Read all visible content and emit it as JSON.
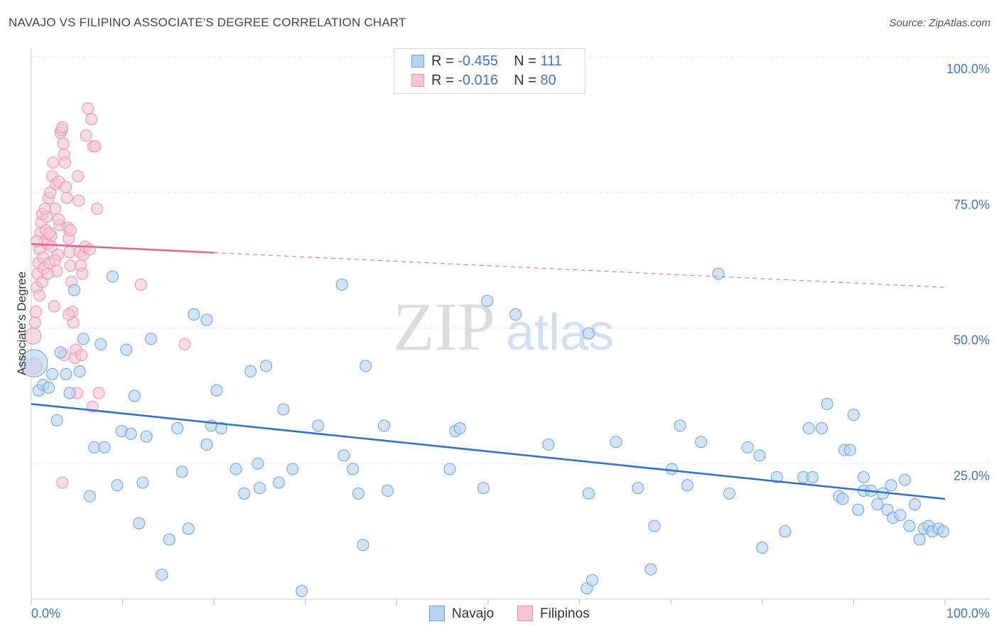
{
  "title": "NAVAJO VS FILIPINO ASSOCIATE'S DEGREE CORRELATION CHART",
  "source": "Source: ZipAtlas.com",
  "watermark": {
    "zip": "ZIP",
    "atlas": "atlas"
  },
  "legend": {
    "navajo": {
      "r_label": "R =",
      "r_value": "-0.455",
      "n_label": "N =",
      "n_value": "111"
    },
    "filipinos": {
      "r_label": "R =",
      "r_value": "-0.016",
      "n_label": "N =",
      "n_value": "80"
    }
  },
  "colors": {
    "navajo_fill": "#b7d2f3",
    "navajo_stroke": "#6b9fdf",
    "navajo_line": "#2a6fd6",
    "filipino_fill": "#f9c5d4",
    "filipino_stroke": "#ee8fae",
    "filipino_line": "#e8628a",
    "axis_text": "#3a74d0",
    "grid": "#e6e6e6"
  },
  "chart_data": {
    "type": "scatter",
    "title": "NAVAJO VS FILIPINO ASSOCIATE'S DEGREE CORRELATION CHART",
    "xlabel": "",
    "ylabel": "Associate's Degree",
    "xlim": [
      0,
      100
    ],
    "ylim": [
      0,
      100
    ],
    "x_tick_labels": [
      "0.0%",
      "100.0%"
    ],
    "y_tick_labels": [
      "25.0%",
      "50.0%",
      "75.0%",
      "100.0%"
    ],
    "y_ticks": [
      25,
      50,
      75,
      100
    ],
    "series": [
      {
        "name": "Navajo",
        "trend": {
          "x": [
            0,
            100
          ],
          "y": [
            36.0,
            18.5
          ],
          "dashed_from": null
        },
        "points": [
          [
            0.3,
            43.5,
            2.4
          ],
          [
            0.8,
            38.5,
            1
          ],
          [
            1.3,
            39.5,
            1
          ],
          [
            1.9,
            39.0,
            1
          ],
          [
            2.3,
            41.5,
            1
          ],
          [
            2.8,
            33.0,
            1
          ],
          [
            3.2,
            45.5,
            1
          ],
          [
            3.8,
            41.5,
            1
          ],
          [
            4.2,
            38.0,
            1
          ],
          [
            4.7,
            57.0,
            1
          ],
          [
            5.3,
            42.0,
            1
          ],
          [
            5.7,
            48.0,
            1
          ],
          [
            6.4,
            19.0,
            1
          ],
          [
            6.9,
            28.0,
            1
          ],
          [
            7.6,
            47.0,
            1
          ],
          [
            8.0,
            28.0,
            1
          ],
          [
            8.9,
            59.5,
            1
          ],
          [
            9.4,
            21.0,
            1
          ],
          [
            9.9,
            31.0,
            1
          ],
          [
            10.4,
            46.0,
            1
          ],
          [
            10.9,
            30.5,
            1
          ],
          [
            11.3,
            37.5,
            1
          ],
          [
            11.8,
            14.0,
            1
          ],
          [
            12.2,
            21.5,
            1
          ],
          [
            12.6,
            30.0,
            1
          ],
          [
            13.1,
            48.0,
            1
          ],
          [
            14.3,
            4.5,
            1
          ],
          [
            15.1,
            11.0,
            1
          ],
          [
            16.0,
            31.5,
            1
          ],
          [
            16.5,
            23.5,
            1
          ],
          [
            17.2,
            13.0,
            1
          ],
          [
            17.8,
            52.5,
            1
          ],
          [
            19.2,
            51.5,
            1
          ],
          [
            19.2,
            28.5,
            1
          ],
          [
            19.7,
            32.0,
            1
          ],
          [
            20.3,
            38.5,
            1
          ],
          [
            20.8,
            31.5,
            1
          ],
          [
            22.4,
            24.0,
            1
          ],
          [
            23.3,
            19.5,
            1
          ],
          [
            24.0,
            42.0,
            1
          ],
          [
            24.8,
            25.0,
            1
          ],
          [
            25.0,
            20.5,
            1
          ],
          [
            25.7,
            43.0,
            1
          ],
          [
            27.1,
            21.5,
            1
          ],
          [
            27.6,
            35.0,
            1
          ],
          [
            28.6,
            24.0,
            1
          ],
          [
            29.6,
            1.5,
            1
          ],
          [
            31.4,
            32.0,
            1
          ],
          [
            34.0,
            58.0,
            1
          ],
          [
            34.2,
            26.5,
            1
          ],
          [
            35.2,
            24.0,
            1
          ],
          [
            35.8,
            19.5,
            1
          ],
          [
            36.3,
            10.0,
            1
          ],
          [
            36.6,
            43.0,
            1
          ],
          [
            38.6,
            32.0,
            1
          ],
          [
            39.0,
            20.0,
            1
          ],
          [
            45.8,
            24.0,
            1
          ],
          [
            46.4,
            31.0,
            1
          ],
          [
            46.9,
            31.5,
            1
          ],
          [
            49.5,
            20.5,
            1
          ],
          [
            49.9,
            55.0,
            1
          ],
          [
            53.0,
            52.5,
            1
          ],
          [
            56.6,
            28.5,
            1
          ],
          [
            60.8,
            2.0,
            1
          ],
          [
            61.0,
            49.0,
            1
          ],
          [
            61.0,
            19.5,
            1
          ],
          [
            61.4,
            3.5,
            1
          ],
          [
            64.0,
            29.0,
            1
          ],
          [
            66.4,
            20.5,
            1
          ],
          [
            67.8,
            5.5,
            1
          ],
          [
            68.2,
            13.5,
            1
          ],
          [
            70.1,
            24.0,
            1
          ],
          [
            71.0,
            32.0,
            1
          ],
          [
            71.8,
            21.0,
            1
          ],
          [
            73.3,
            29.0,
            1
          ],
          [
            75.2,
            60.0,
            1
          ],
          [
            76.4,
            19.5,
            1
          ],
          [
            78.4,
            28.0,
            1
          ],
          [
            79.7,
            26.5,
            1
          ],
          [
            80.0,
            9.5,
            1
          ],
          [
            81.6,
            22.5,
            1
          ],
          [
            82.5,
            12.5,
            1
          ],
          [
            84.5,
            22.5,
            1
          ],
          [
            85.1,
            31.5,
            1
          ],
          [
            85.5,
            22.5,
            1
          ],
          [
            86.5,
            31.5,
            1
          ],
          [
            87.1,
            36.0,
            1
          ],
          [
            88.4,
            19.0,
            1
          ],
          [
            88.8,
            18.5,
            1
          ],
          [
            89.0,
            27.5,
            1
          ],
          [
            89.6,
            27.5,
            1
          ],
          [
            90.0,
            34.0,
            1
          ],
          [
            90.5,
            16.5,
            1
          ],
          [
            91.1,
            22.5,
            1
          ],
          [
            91.1,
            20.0,
            1
          ],
          [
            91.9,
            20.0,
            1
          ],
          [
            92.6,
            17.5,
            1
          ],
          [
            93.2,
            19.5,
            1
          ],
          [
            93.7,
            16.5,
            1
          ],
          [
            94.1,
            21.0,
            1
          ],
          [
            94.3,
            15.0,
            1
          ],
          [
            95.1,
            15.5,
            1
          ],
          [
            95.6,
            22.0,
            1
          ],
          [
            96.1,
            13.5,
            1
          ],
          [
            96.7,
            17.5,
            1
          ],
          [
            97.2,
            11.0,
            1
          ],
          [
            97.7,
            13.0,
            1
          ],
          [
            98.2,
            13.5,
            1
          ],
          [
            98.6,
            12.5,
            1
          ],
          [
            99.3,
            13.0,
            1
          ],
          [
            99.8,
            12.5,
            1
          ]
        ]
      },
      {
        "name": "Filipinos",
        "trend": {
          "x": [
            0,
            100
          ],
          "y": [
            65.5,
            57.5
          ],
          "dashed_from": 20
        },
        "points": [
          [
            0.2,
            48.5,
            1.4
          ],
          [
            0.3,
            43.0,
            1.4
          ],
          [
            0.4,
            51.0,
            1
          ],
          [
            0.5,
            53.0,
            1
          ],
          [
            0.6,
            57.5,
            1
          ],
          [
            0.7,
            60.0,
            1
          ],
          [
            0.8,
            62.0,
            1
          ],
          [
            0.9,
            64.5,
            1
          ],
          [
            1.0,
            67.5,
            1
          ],
          [
            1.1,
            69.5,
            1
          ],
          [
            1.2,
            71.0,
            1
          ],
          [
            1.3,
            63.0,
            1
          ],
          [
            1.4,
            61.0,
            1
          ],
          [
            1.5,
            66.0,
            1
          ],
          [
            1.6,
            68.0,
            1
          ],
          [
            1.7,
            70.5,
            1
          ],
          [
            1.8,
            65.5,
            1
          ],
          [
            1.9,
            74.0,
            1
          ],
          [
            2.0,
            62.0,
            1
          ],
          [
            2.1,
            75.0,
            1
          ],
          [
            2.2,
            67.0,
            1
          ],
          [
            2.3,
            78.0,
            1
          ],
          [
            2.4,
            80.5,
            1
          ],
          [
            2.5,
            54.0,
            1
          ],
          [
            2.6,
            72.0,
            1
          ],
          [
            2.7,
            76.5,
            1
          ],
          [
            2.8,
            60.5,
            1
          ],
          [
            2.9,
            63.5,
            1
          ],
          [
            3.0,
            77.0,
            1
          ],
          [
            3.1,
            69.0,
            1
          ],
          [
            3.2,
            86.0,
            1
          ],
          [
            3.3,
            86.5,
            1
          ],
          [
            3.4,
            87.0,
            1
          ],
          [
            3.5,
            84.0,
            1
          ],
          [
            3.6,
            82.0,
            1
          ],
          [
            3.7,
            80.5,
            1
          ],
          [
            3.8,
            76.0,
            1
          ],
          [
            3.9,
            74.0,
            1
          ],
          [
            4.0,
            68.5,
            1
          ],
          [
            4.1,
            66.5,
            1
          ],
          [
            4.2,
            64.0,
            1
          ],
          [
            4.3,
            61.5,
            1
          ],
          [
            4.4,
            58.5,
            1
          ],
          [
            4.5,
            53.0,
            1
          ],
          [
            4.6,
            51.0,
            1
          ],
          [
            4.8,
            44.5,
            1
          ],
          [
            4.9,
            46.0,
            1
          ],
          [
            5.0,
            38.0,
            1
          ],
          [
            5.1,
            78.0,
            1
          ],
          [
            5.2,
            73.5,
            1
          ],
          [
            5.3,
            64.0,
            1
          ],
          [
            5.4,
            61.5,
            1
          ],
          [
            5.5,
            45.0,
            1
          ],
          [
            5.6,
            60.0,
            1
          ],
          [
            5.7,
            63.5,
            1
          ],
          [
            5.9,
            65.0,
            1
          ],
          [
            6.0,
            85.5,
            1
          ],
          [
            6.2,
            90.5,
            1
          ],
          [
            6.4,
            64.5,
            1
          ],
          [
            6.6,
            88.5,
            1
          ],
          [
            6.8,
            83.5,
            1
          ],
          [
            7.0,
            83.5,
            1
          ],
          [
            7.2,
            72.0,
            1
          ],
          [
            7.4,
            38.0,
            1
          ],
          [
            1.2,
            58.5,
            1
          ],
          [
            0.9,
            56.0,
            1
          ],
          [
            2.0,
            67.5,
            1
          ],
          [
            2.6,
            62.5,
            1
          ],
          [
            3.6,
            45.0,
            1
          ],
          [
            4.1,
            52.5,
            1
          ],
          [
            3.4,
            21.5,
            1
          ],
          [
            6.7,
            35.5,
            1
          ],
          [
            12.0,
            58.0,
            1
          ],
          [
            16.8,
            47.0,
            1
          ],
          [
            1.8,
            60.0,
            1
          ],
          [
            2.2,
            65.0,
            1
          ],
          [
            0.6,
            66.0,
            1
          ],
          [
            1.5,
            72.0,
            1
          ],
          [
            3.0,
            70.0,
            1
          ],
          [
            4.3,
            68.0,
            1
          ]
        ]
      }
    ]
  },
  "bottom_legend": {
    "navajo": "Navajo",
    "filipinos": "Filipinos"
  }
}
